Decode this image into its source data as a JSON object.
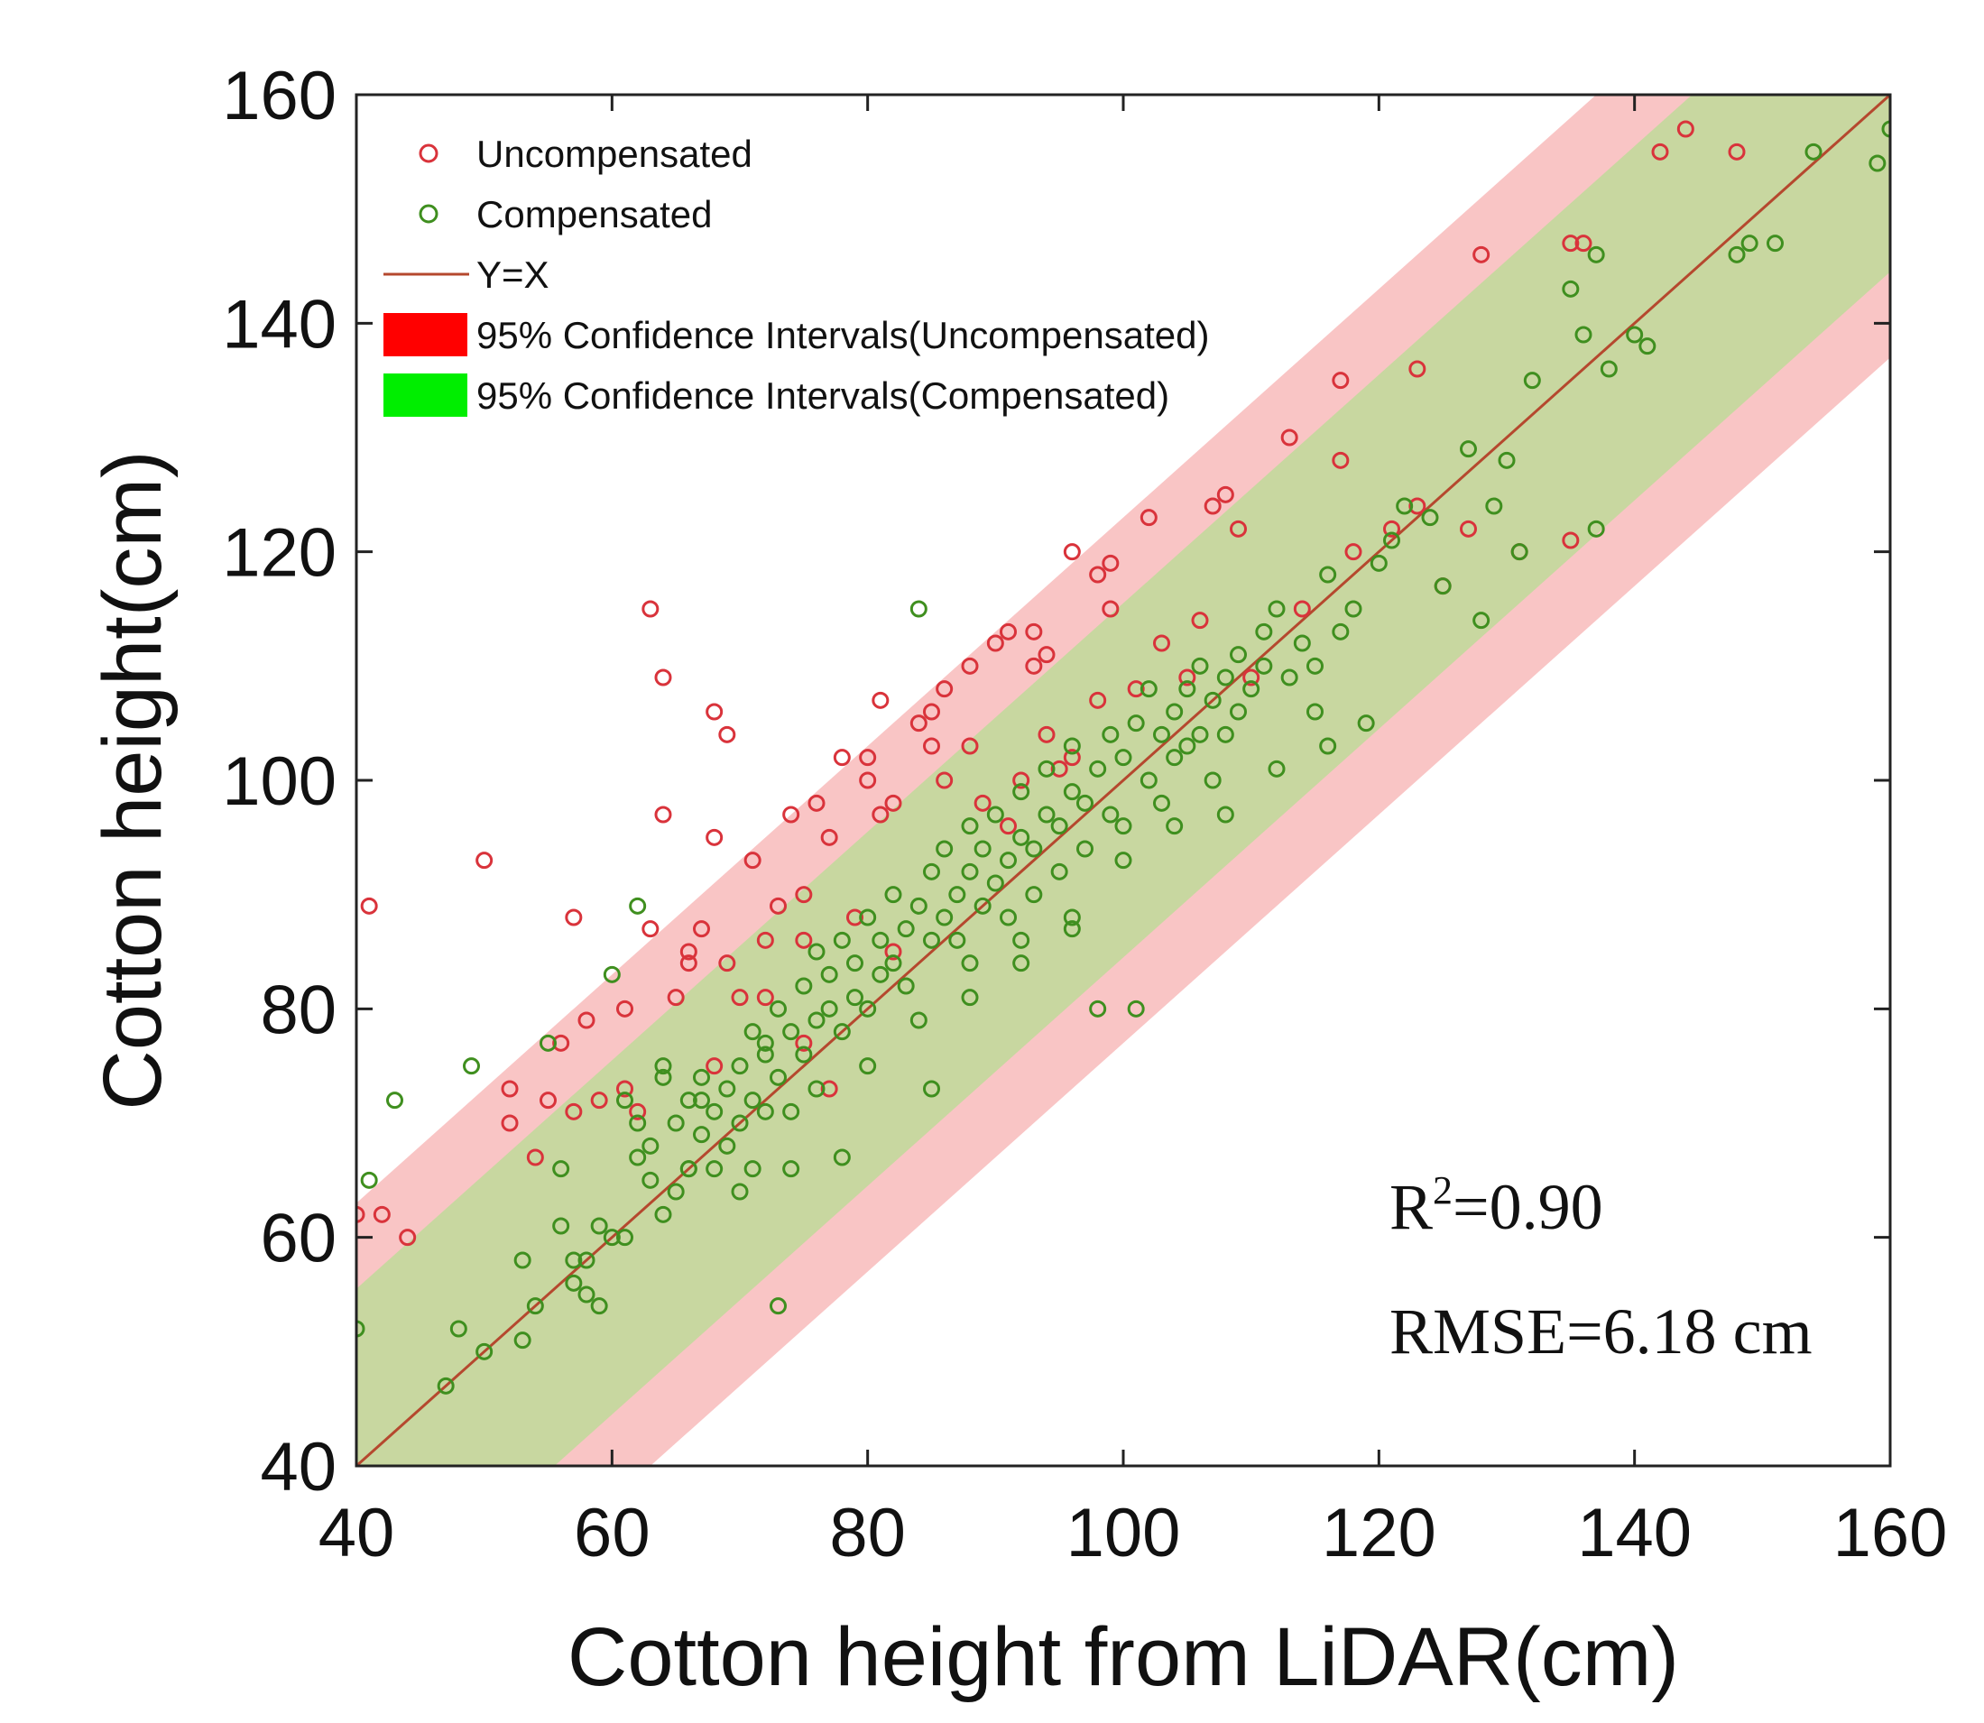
{
  "colors": {
    "uncompensated": "#d9333b",
    "compensated": "#3f8f1f",
    "yx_line": "#b5482e",
    "ci_uncompensated": "#f9c5c5",
    "ci_compensated": "#c8d7a0",
    "legend_red": "#ff0000",
    "legend_green": "#00ee00"
  },
  "chart_data": {
    "type": "scatter",
    "title": "",
    "xlabel": "Cotton height from LiDAR(cm)",
    "ylabel": "Cotton height(cm)",
    "xlim": [
      40,
      160
    ],
    "ylim": [
      40,
      160
    ],
    "xticks": [
      "40",
      "60",
      "80",
      "100",
      "120",
      "140",
      "160"
    ],
    "yticks": [
      "40",
      "60",
      "80",
      "100",
      "120",
      "140",
      "160"
    ],
    "grid": false,
    "legend_position": "top-left",
    "legend": [
      {
        "label": "Uncompensated",
        "kind": "marker",
        "color_key": "uncompensated"
      },
      {
        "label": "Compensated",
        "kind": "marker",
        "color_key": "compensated"
      },
      {
        "label": "Y=X",
        "kind": "line",
        "color_key": "yx_line"
      },
      {
        "label": "95% Confidence Intervals(Uncompensated)",
        "kind": "patch",
        "color_key": "legend_red"
      },
      {
        "label": "95% Confidence Intervals(Compensated)",
        "kind": "patch",
        "color_key": "legend_green"
      }
    ],
    "reference_line": {
      "name": "Y=X",
      "slope": 1,
      "intercept": 0
    },
    "confidence_bands": [
      {
        "name": "95% Confidence Intervals(Uncompensated)",
        "offset": 23,
        "color_key": "ci_uncompensated"
      },
      {
        "name": "95% Confidence Intervals(Compensated)",
        "offset": 15.5,
        "color_key": "ci_compensated"
      }
    ],
    "annotations": {
      "r2_base": "R",
      "r2_sup": "2",
      "r2_value": "=0.90",
      "rmse": "RMSE=6.18 cm"
    },
    "series": [
      {
        "name": "Uncompensated",
        "color_key": "uncompensated",
        "points": [
          [
            41,
            89
          ],
          [
            50,
            93
          ],
          [
            57,
            88
          ],
          [
            58,
            79
          ],
          [
            61,
            80
          ],
          [
            63,
            87
          ],
          [
            63,
            115
          ],
          [
            64,
            97
          ],
          [
            64,
            109
          ],
          [
            66,
            85
          ],
          [
            67,
            87
          ],
          [
            68,
            95
          ],
          [
            68,
            106
          ],
          [
            69,
            104
          ],
          [
            71,
            93
          ],
          [
            74,
            97
          ],
          [
            75,
            90
          ],
          [
            76,
            98
          ],
          [
            77,
            95
          ],
          [
            78,
            102
          ],
          [
            80,
            102
          ],
          [
            80,
            100
          ],
          [
            81,
            97
          ],
          [
            81,
            107
          ],
          [
            82,
            98
          ],
          [
            84,
            105
          ],
          [
            85,
            106
          ],
          [
            85,
            103
          ],
          [
            86,
            108
          ],
          [
            88,
            110
          ],
          [
            90,
            112
          ],
          [
            91,
            113
          ],
          [
            93,
            113
          ],
          [
            93,
            110
          ],
          [
            94,
            111
          ],
          [
            96,
            120
          ],
          [
            98,
            118
          ],
          [
            99,
            115
          ],
          [
            99,
            119
          ],
          [
            102,
            123
          ],
          [
            107,
            124
          ],
          [
            108,
            125
          ],
          [
            109,
            122
          ],
          [
            113,
            130
          ],
          [
            117,
            135
          ],
          [
            117,
            128
          ],
          [
            123,
            136
          ],
          [
            128,
            146
          ],
          [
            135,
            147
          ],
          [
            136,
            147
          ],
          [
            142,
            155
          ],
          [
            144,
            157
          ],
          [
            148,
            155
          ],
          [
            40,
            62
          ],
          [
            42,
            62
          ],
          [
            44,
            60
          ],
          [
            52,
            70
          ],
          [
            52,
            73
          ],
          [
            55,
            72
          ],
          [
            56,
            77
          ],
          [
            59,
            72
          ],
          [
            62,
            71
          ],
          [
            65,
            81
          ],
          [
            66,
            84
          ],
          [
            69,
            84
          ],
          [
            70,
            81
          ],
          [
            72,
            86
          ],
          [
            73,
            89
          ],
          [
            75,
            86
          ],
          [
            77,
            73
          ],
          [
            79,
            88
          ],
          [
            82,
            85
          ],
          [
            86,
            100
          ],
          [
            88,
            103
          ],
          [
            89,
            98
          ],
          [
            91,
            96
          ],
          [
            92,
            100
          ],
          [
            94,
            104
          ],
          [
            95,
            101
          ],
          [
            96,
            102
          ],
          [
            98,
            107
          ],
          [
            101,
            108
          ],
          [
            103,
            112
          ],
          [
            105,
            109
          ],
          [
            106,
            114
          ],
          [
            110,
            109
          ],
          [
            114,
            115
          ],
          [
            118,
            120
          ],
          [
            121,
            122
          ],
          [
            123,
            124
          ],
          [
            125,
            117
          ],
          [
            127,
            122
          ],
          [
            131,
            120
          ],
          [
            135,
            121
          ],
          [
            75,
            77
          ],
          [
            72,
            81
          ],
          [
            68,
            75
          ],
          [
            61,
            73
          ],
          [
            57,
            71
          ],
          [
            54,
            67
          ]
        ]
      },
      {
        "name": "Compensated",
        "color_key": "compensated",
        "points": [
          [
            40,
            52
          ],
          [
            41,
            65
          ],
          [
            43,
            72
          ],
          [
            47,
            47
          ],
          [
            48,
            52
          ],
          [
            49,
            75
          ],
          [
            50,
            50
          ],
          [
            53,
            51
          ],
          [
            53,
            58
          ],
          [
            54,
            54
          ],
          [
            55,
            77
          ],
          [
            56,
            61
          ],
          [
            56,
            66
          ],
          [
            57,
            56
          ],
          [
            58,
            55
          ],
          [
            58,
            58
          ],
          [
            59,
            54
          ],
          [
            60,
            60
          ],
          [
            60,
            83
          ],
          [
            61,
            60
          ],
          [
            61,
            72
          ],
          [
            62,
            70
          ],
          [
            62,
            89
          ],
          [
            63,
            65
          ],
          [
            63,
            68
          ],
          [
            64,
            62
          ],
          [
            64,
            75
          ],
          [
            65,
            64
          ],
          [
            65,
            70
          ],
          [
            66,
            66
          ],
          [
            66,
            72
          ],
          [
            67,
            69
          ],
          [
            67,
            74
          ],
          [
            68,
            66
          ],
          [
            68,
            71
          ],
          [
            69,
            73
          ],
          [
            69,
            68
          ],
          [
            70,
            70
          ],
          [
            70,
            75
          ],
          [
            71,
            72
          ],
          [
            71,
            66
          ],
          [
            72,
            77
          ],
          [
            72,
            71
          ],
          [
            73,
            74
          ],
          [
            73,
            80
          ],
          [
            74,
            78
          ],
          [
            74,
            71
          ],
          [
            75,
            82
          ],
          [
            75,
            76
          ],
          [
            76,
            79
          ],
          [
            76,
            85
          ],
          [
            77,
            80
          ],
          [
            77,
            83
          ],
          [
            78,
            78
          ],
          [
            78,
            86
          ],
          [
            79,
            81
          ],
          [
            79,
            84
          ],
          [
            80,
            80
          ],
          [
            80,
            88
          ],
          [
            81,
            83
          ],
          [
            81,
            86
          ],
          [
            82,
            84
          ],
          [
            82,
            90
          ],
          [
            83,
            87
          ],
          [
            83,
            82
          ],
          [
            84,
            89
          ],
          [
            84,
            115
          ],
          [
            85,
            92
          ],
          [
            85,
            86
          ],
          [
            86,
            88
          ],
          [
            86,
            94
          ],
          [
            87,
            90
          ],
          [
            87,
            86
          ],
          [
            88,
            92
          ],
          [
            88,
            96
          ],
          [
            89,
            89
          ],
          [
            89,
            94
          ],
          [
            90,
            91
          ],
          [
            90,
            97
          ],
          [
            91,
            93
          ],
          [
            91,
            88
          ],
          [
            92,
            95
          ],
          [
            92,
            99
          ],
          [
            93,
            94
          ],
          [
            93,
            90
          ],
          [
            94,
            97
          ],
          [
            94,
            101
          ],
          [
            95,
            96
          ],
          [
            95,
            92
          ],
          [
            96,
            99
          ],
          [
            96,
            103
          ],
          [
            97,
            98
          ],
          [
            97,
            94
          ],
          [
            98,
            101
          ],
          [
            98,
            80
          ],
          [
            99,
            104
          ],
          [
            99,
            97
          ],
          [
            100,
            102
          ],
          [
            100,
            96
          ],
          [
            101,
            105
          ],
          [
            101,
            80
          ],
          [
            102,
            100
          ],
          [
            102,
            108
          ],
          [
            103,
            104
          ],
          [
            103,
            98
          ],
          [
            104,
            106
          ],
          [
            104,
            102
          ],
          [
            105,
            108
          ],
          [
            105,
            103
          ],
          [
            106,
            110
          ],
          [
            106,
            104
          ],
          [
            107,
            107
          ],
          [
            107,
            100
          ],
          [
            108,
            109
          ],
          [
            108,
            104
          ],
          [
            109,
            111
          ],
          [
            109,
            106
          ],
          [
            110,
            108
          ],
          [
            111,
            113
          ],
          [
            111,
            110
          ],
          [
            112,
            115
          ],
          [
            113,
            109
          ],
          [
            114,
            112
          ],
          [
            115,
            110
          ],
          [
            115,
            106
          ],
          [
            116,
            118
          ],
          [
            117,
            113
          ],
          [
            118,
            115
          ],
          [
            119,
            105
          ],
          [
            120,
            119
          ],
          [
            121,
            121
          ],
          [
            122,
            124
          ],
          [
            124,
            123
          ],
          [
            125,
            117
          ],
          [
            127,
            129
          ],
          [
            128,
            114
          ],
          [
            129,
            124
          ],
          [
            130,
            128
          ],
          [
            131,
            120
          ],
          [
            132,
            135
          ],
          [
            135,
            143
          ],
          [
            136,
            139
          ],
          [
            137,
            146
          ],
          [
            137,
            122
          ],
          [
            138,
            136
          ],
          [
            140,
            139
          ],
          [
            141,
            138
          ],
          [
            148,
            146
          ],
          [
            149,
            147
          ],
          [
            151,
            147
          ],
          [
            154,
            155
          ],
          [
            159,
            154
          ],
          [
            160,
            157
          ],
          [
            66,
            66
          ],
          [
            70,
            64
          ],
          [
            74,
            66
          ],
          [
            78,
            67
          ],
          [
            85,
            73
          ],
          [
            88,
            84
          ],
          [
            92,
            86
          ],
          [
            96,
            88
          ],
          [
            100,
            93
          ],
          [
            104,
            96
          ],
          [
            108,
            97
          ],
          [
            112,
            101
          ],
          [
            116,
            103
          ],
          [
            73,
            54
          ],
          [
            59,
            61
          ],
          [
            64,
            74
          ],
          [
            72,
            76
          ],
          [
            76,
            73
          ],
          [
            80,
            75
          ],
          [
            84,
            79
          ],
          [
            88,
            81
          ],
          [
            92,
            84
          ],
          [
            96,
            87
          ],
          [
            57,
            58
          ],
          [
            62,
            67
          ],
          [
            67,
            72
          ],
          [
            71,
            78
          ]
        ]
      }
    ]
  }
}
